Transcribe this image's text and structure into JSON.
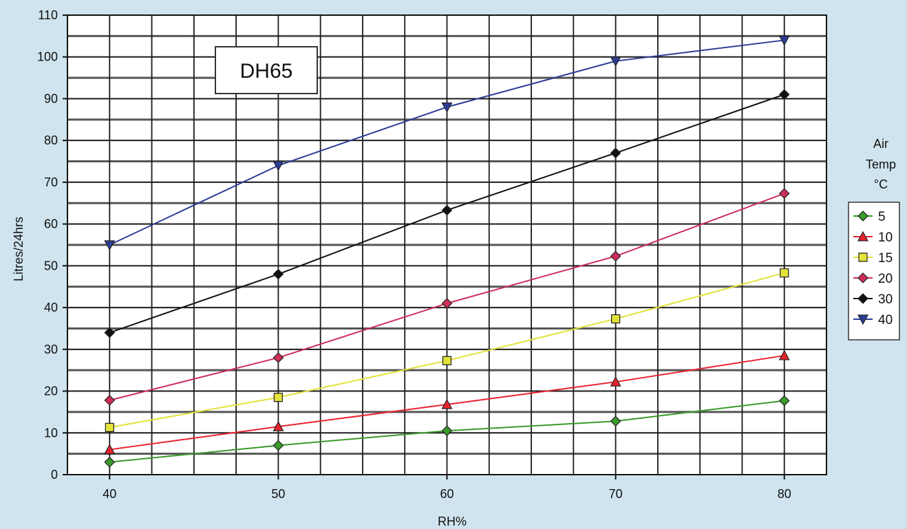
{
  "chart_data": {
    "type": "line",
    "annotation": "DH65",
    "xlabel": "RH%",
    "ylabel": "Litres/24hrs",
    "x": [
      40,
      50,
      60,
      70,
      80
    ],
    "xlim": [
      37.5,
      82.5
    ],
    "ylim": [
      0,
      110
    ],
    "yticks": [
      0,
      10,
      20,
      30,
      40,
      50,
      60,
      70,
      80,
      90,
      100,
      110
    ],
    "grid": true,
    "legend_title": [
      "Air",
      "Temp",
      "°C"
    ],
    "legend_position": "right",
    "series": [
      {
        "name": "5",
        "color": "#3a9a2a",
        "marker": "diamond",
        "values": [
          3,
          7,
          10.5,
          12.8,
          17.7
        ]
      },
      {
        "name": "10",
        "color": "#e8232e",
        "marker": "triangle",
        "values": [
          6,
          11.5,
          16.8,
          22.2,
          28.5
        ]
      },
      {
        "name": "15",
        "color": "#e3e23a",
        "marker": "square",
        "values": [
          11.3,
          18.5,
          27.3,
          37.3,
          48.3
        ]
      },
      {
        "name": "20",
        "color": "#cf2e5a",
        "marker": "diamond",
        "values": [
          17.8,
          28,
          41,
          52.3,
          67.3
        ]
      },
      {
        "name": "30",
        "color": "#111111",
        "marker": "diamond",
        "values": [
          34,
          48,
          63.3,
          77,
          91
        ]
      },
      {
        "name": "40",
        "color": "#2d3d97",
        "marker": "triangle-down",
        "values": [
          55,
          74,
          88,
          99,
          104
        ]
      }
    ]
  }
}
